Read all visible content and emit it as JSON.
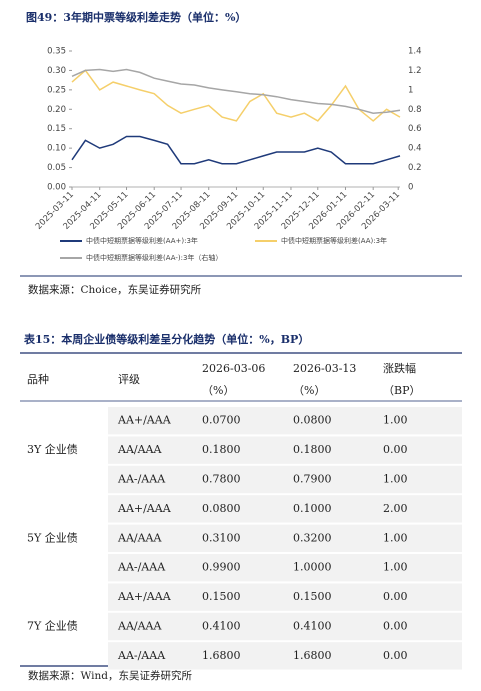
{
  "figure": {
    "title": "图49：3年期中票等级利差走势（单位：%）",
    "chart_data": {
      "type": "line",
      "x": [
        "2025-03-11",
        "2025-03-26",
        "2025-04-11",
        "2025-04-26",
        "2025-05-11",
        "2025-05-26",
        "2025-06-11",
        "2025-06-26",
        "2025-07-11",
        "2025-07-26",
        "2025-08-11",
        "2025-08-26",
        "2025-09-11",
        "2025-09-26",
        "2025-10-11",
        "2025-10-26",
        "2025-11-11",
        "2025-11-26",
        "2025-12-11",
        "2025-12-26",
        "2026-01-11",
        "2026-01-26",
        "2026-02-11",
        "2026-02-26",
        "2026-03-13"
      ],
      "xlim": [
        "2025-03-11",
        "2026-03-13"
      ],
      "xticks": [
        "2025-03-11",
        "2025-04-11",
        "2025-05-11",
        "2025-06-11",
        "2025-07-11",
        "2025-08-11",
        "2025-09-11",
        "2025-10-11",
        "2025-11-11",
        "2025-12-11",
        "2026-01-11",
        "2026-02-11",
        "2026-03-11"
      ],
      "ylim": [
        0,
        0.35
      ],
      "yticks": [
        {
          "value": 0,
          "label": "0.00"
        },
        {
          "value": 0.05,
          "label": "0.05"
        },
        {
          "value": 0.1,
          "label": "0.10"
        },
        {
          "value": 0.15,
          "label": "0.15"
        },
        {
          "value": 0.2,
          "label": "0.20"
        },
        {
          "value": 0.25,
          "label": "0.25"
        },
        {
          "value": 0.3,
          "label": "0.30"
        },
        {
          "value": 0.35,
          "label": "0.35"
        }
      ],
      "y2lim": [
        0,
        1.4
      ],
      "y2ticks": [
        0,
        0.2,
        0.4,
        0.6,
        0.8,
        1,
        1.2,
        1.4
      ],
      "series": [
        {
          "name": "中债中短期票据等级利差(AA+):3年",
          "color": "#1f3a7a",
          "values": [
            0.07,
            0.12,
            0.1,
            0.11,
            0.13,
            0.13,
            0.12,
            0.11,
            0.06,
            0.06,
            0.07,
            0.06,
            0.06,
            0.07,
            0.08,
            0.09,
            0.09,
            0.09,
            0.1,
            0.09,
            0.06,
            0.06,
            0.06,
            0.07,
            0.08
          ]
        },
        {
          "name": "中债中短期票据等级利差(AA):3年",
          "color": "#f5cf6a",
          "values": [
            0.27,
            0.3,
            0.25,
            0.27,
            0.26,
            0.25,
            0.24,
            0.21,
            0.19,
            0.2,
            0.21,
            0.18,
            0.17,
            0.22,
            0.24,
            0.19,
            0.18,
            0.19,
            0.17,
            0.21,
            0.26,
            0.2,
            0.17,
            0.2,
            0.18
          ]
        },
        {
          "name": "中债中短期票据等级利差(AA-):3年（右轴）",
          "color": "#a6a6a6",
          "axis": "y2",
          "values": [
            1.14,
            1.2,
            1.21,
            1.19,
            1.21,
            1.18,
            1.12,
            1.09,
            1.06,
            1.05,
            1.02,
            1.0,
            0.98,
            0.96,
            0.95,
            0.93,
            0.9,
            0.88,
            0.86,
            0.85,
            0.83,
            0.8,
            0.76,
            0.77,
            0.79
          ]
        }
      ]
    },
    "source": "数据来源：Choice，东吴证券研究所"
  },
  "table": {
    "title": "表15：本周企业债等级利差呈分化趋势（单位：%，BP）",
    "header": [
      [
        "品种"
      ],
      [
        "评级"
      ],
      [
        "2026-03-06",
        "（%）"
      ],
      [
        "2026-03-13",
        "（%）"
      ],
      [
        "涨跌幅",
        "（BP）"
      ]
    ],
    "groups": [
      {
        "name": "3Y 企业债",
        "rows": [
          [
            "AA+/AAA",
            "0.0700",
            "0.0800",
            "1.00"
          ],
          [
            "AA/AAA",
            "0.1800",
            "0.1800",
            "0.00"
          ],
          [
            "AA-/AAA",
            "0.7800",
            "0.7900",
            "1.00"
          ]
        ]
      },
      {
        "name": "5Y 企业债",
        "rows": [
          [
            "AA+/AAA",
            "0.0800",
            "0.1000",
            "2.00"
          ],
          [
            "AA/AAA",
            "0.3100",
            "0.3200",
            "1.00"
          ],
          [
            "AA-/AAA",
            "0.9900",
            "1.0000",
            "1.00"
          ]
        ]
      },
      {
        "name": "7Y 企业债",
        "rows": [
          [
            "AA+/AAA",
            "0.1500",
            "0.1500",
            "0.00"
          ],
          [
            "AA/AAA",
            "0.4100",
            "0.4100",
            "0.00"
          ],
          [
            "AA-/AAA",
            "1.6800",
            "1.6800",
            "0.00"
          ]
        ]
      }
    ],
    "source": "数据来源：Wind，东吴证券研究所"
  }
}
